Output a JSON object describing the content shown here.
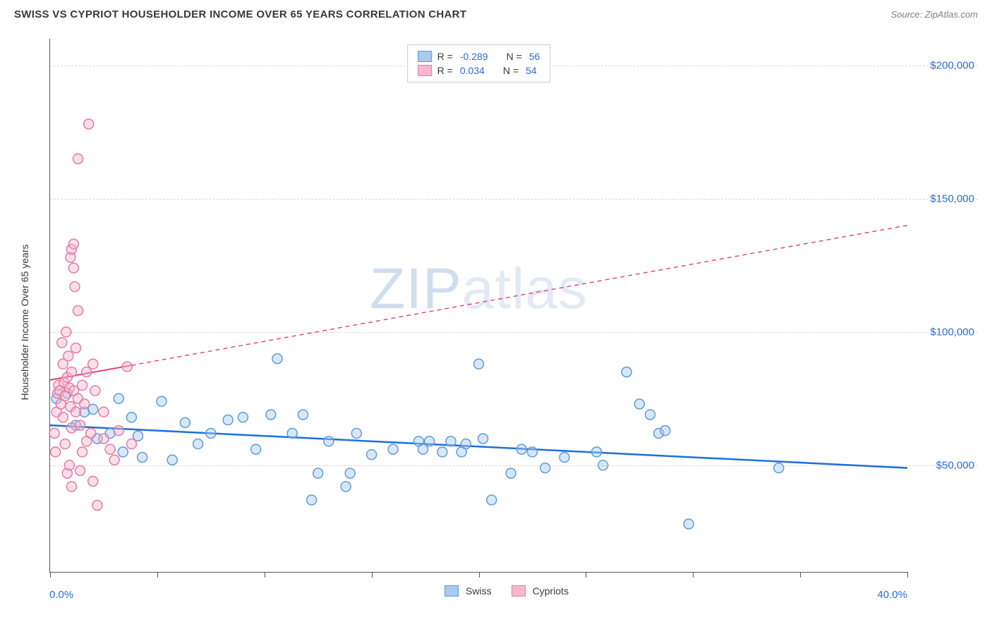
{
  "title": "SWISS VS CYPRIOT HOUSEHOLDER INCOME OVER 65 YEARS CORRELATION CHART",
  "source_prefix": "Source: ",
  "source_name": "ZipAtlas.com",
  "y_axis_label": "Householder Income Over 65 years",
  "watermark": "ZIPatlas",
  "chart": {
    "type": "scatter",
    "xlim": [
      0,
      40
    ],
    "ylim": [
      10000,
      210000
    ],
    "x_start_label": "0.0%",
    "x_end_label": "40.0%",
    "x_ticks_pct": [
      0,
      5,
      10,
      15,
      20,
      25,
      30,
      35,
      40
    ],
    "y_gridlines": [
      50000,
      100000,
      150000,
      200000
    ],
    "y_tick_labels": [
      "$50,000",
      "$100,000",
      "$150,000",
      "$200,000"
    ],
    "background_color": "#ffffff",
    "grid_color": "#d8d8d8",
    "marker_radius": 7,
    "marker_fill_opacity": 0.45,
    "series": [
      {
        "name": "Swiss",
        "color_fill": "#a9c9ef",
        "color_stroke": "#5f9bdc",
        "line_color": "#1e6fd9",
        "line_width": 2.5,
        "line_dash": "none",
        "r_value": "-0.289",
        "n_value": "56",
        "trend_start": {
          "x": 0,
          "y": 65000
        },
        "trend_end_solid": {
          "x": 40,
          "y": 49000
        },
        "trend_end": {
          "x": 40,
          "y": 49000
        },
        "points": [
          {
            "x": 0.3,
            "y": 75000
          },
          {
            "x": 0.8,
            "y": 77000
          },
          {
            "x": 1.2,
            "y": 65000
          },
          {
            "x": 1.6,
            "y": 70000
          },
          {
            "x": 2.0,
            "y": 71000
          },
          {
            "x": 2.2,
            "y": 60000
          },
          {
            "x": 2.8,
            "y": 62000
          },
          {
            "x": 3.2,
            "y": 75000
          },
          {
            "x": 3.4,
            "y": 55000
          },
          {
            "x": 3.8,
            "y": 68000
          },
          {
            "x": 4.1,
            "y": 61000
          },
          {
            "x": 4.3,
            "y": 53000
          },
          {
            "x": 5.2,
            "y": 74000
          },
          {
            "x": 5.7,
            "y": 52000
          },
          {
            "x": 6.3,
            "y": 66000
          },
          {
            "x": 6.9,
            "y": 58000
          },
          {
            "x": 7.5,
            "y": 62000
          },
          {
            "x": 8.3,
            "y": 67000
          },
          {
            "x": 9.0,
            "y": 68000
          },
          {
            "x": 9.6,
            "y": 56000
          },
          {
            "x": 10.3,
            "y": 69000
          },
          {
            "x": 10.6,
            "y": 90000
          },
          {
            "x": 11.3,
            "y": 62000
          },
          {
            "x": 11.8,
            "y": 69000
          },
          {
            "x": 12.2,
            "y": 37000
          },
          {
            "x": 12.5,
            "y": 47000
          },
          {
            "x": 13.0,
            "y": 59000
          },
          {
            "x": 13.8,
            "y": 42000
          },
          {
            "x": 14.0,
            "y": 47000
          },
          {
            "x": 14.3,
            "y": 62000
          },
          {
            "x": 15.0,
            "y": 54000
          },
          {
            "x": 16.0,
            "y": 56000
          },
          {
            "x": 17.2,
            "y": 59000
          },
          {
            "x": 17.4,
            "y": 56000
          },
          {
            "x": 17.7,
            "y": 59000
          },
          {
            "x": 18.3,
            "y": 55000
          },
          {
            "x": 18.7,
            "y": 59000
          },
          {
            "x": 19.2,
            "y": 55000
          },
          {
            "x": 19.4,
            "y": 58000
          },
          {
            "x": 20.0,
            "y": 88000
          },
          {
            "x": 20.2,
            "y": 60000
          },
          {
            "x": 20.6,
            "y": 37000
          },
          {
            "x": 21.5,
            "y": 47000
          },
          {
            "x": 22.0,
            "y": 56000
          },
          {
            "x": 22.5,
            "y": 55000
          },
          {
            "x": 23.1,
            "y": 49000
          },
          {
            "x": 24.0,
            "y": 53000
          },
          {
            "x": 25.5,
            "y": 55000
          },
          {
            "x": 25.8,
            "y": 50000
          },
          {
            "x": 26.9,
            "y": 85000
          },
          {
            "x": 27.5,
            "y": 73000
          },
          {
            "x": 28.0,
            "y": 69000
          },
          {
            "x": 28.4,
            "y": 62000
          },
          {
            "x": 28.7,
            "y": 63000
          },
          {
            "x": 29.8,
            "y": 28000
          },
          {
            "x": 34.0,
            "y": 49000
          }
        ]
      },
      {
        "name": "Cypriots",
        "color_fill": "#f5b8ce",
        "color_stroke": "#e77aa3",
        "line_color": "#e63b7a",
        "line_width": 2,
        "line_dash": "6,5",
        "r_value": "0.034",
        "n_value": "54",
        "trend_start": {
          "x": 0,
          "y": 82000
        },
        "trend_end_solid": {
          "x": 3.8,
          "y": 87500
        },
        "trend_end": {
          "x": 40,
          "y": 140000
        },
        "points": [
          {
            "x": 0.2,
            "y": 62000
          },
          {
            "x": 0.25,
            "y": 55000
          },
          {
            "x": 0.3,
            "y": 70000
          },
          {
            "x": 0.35,
            "y": 77000
          },
          {
            "x": 0.4,
            "y": 80000
          },
          {
            "x": 0.45,
            "y": 78000
          },
          {
            "x": 0.5,
            "y": 73000
          },
          {
            "x": 0.55,
            "y": 96000
          },
          {
            "x": 0.6,
            "y": 88000
          },
          {
            "x": 0.6,
            "y": 68000
          },
          {
            "x": 0.65,
            "y": 81000
          },
          {
            "x": 0.7,
            "y": 76000
          },
          {
            "x": 0.7,
            "y": 58000
          },
          {
            "x": 0.75,
            "y": 100000
          },
          {
            "x": 0.8,
            "y": 83000
          },
          {
            "x": 0.8,
            "y": 47000
          },
          {
            "x": 0.85,
            "y": 91000
          },
          {
            "x": 0.9,
            "y": 79000
          },
          {
            "x": 0.9,
            "y": 50000
          },
          {
            "x": 0.95,
            "y": 128000
          },
          {
            "x": 0.95,
            "y": 72000
          },
          {
            "x": 1.0,
            "y": 131000
          },
          {
            "x": 1.0,
            "y": 85000
          },
          {
            "x": 1.0,
            "y": 64000
          },
          {
            "x": 1.0,
            "y": 42000
          },
          {
            "x": 1.1,
            "y": 133000
          },
          {
            "x": 1.1,
            "y": 124000
          },
          {
            "x": 1.1,
            "y": 78000
          },
          {
            "x": 1.15,
            "y": 117000
          },
          {
            "x": 1.2,
            "y": 94000
          },
          {
            "x": 1.2,
            "y": 70000
          },
          {
            "x": 1.3,
            "y": 108000
          },
          {
            "x": 1.3,
            "y": 75000
          },
          {
            "x": 1.3,
            "y": 165000
          },
          {
            "x": 1.4,
            "y": 65000
          },
          {
            "x": 1.4,
            "y": 48000
          },
          {
            "x": 1.5,
            "y": 80000
          },
          {
            "x": 1.5,
            "y": 55000
          },
          {
            "x": 1.6,
            "y": 73000
          },
          {
            "x": 1.7,
            "y": 85000
          },
          {
            "x": 1.7,
            "y": 59000
          },
          {
            "x": 1.8,
            "y": 178000
          },
          {
            "x": 1.9,
            "y": 62000
          },
          {
            "x": 2.0,
            "y": 88000
          },
          {
            "x": 2.0,
            "y": 44000
          },
          {
            "x": 2.1,
            "y": 78000
          },
          {
            "x": 2.2,
            "y": 35000
          },
          {
            "x": 2.5,
            "y": 60000
          },
          {
            "x": 2.5,
            "y": 70000
          },
          {
            "x": 2.8,
            "y": 56000
          },
          {
            "x": 3.0,
            "y": 52000
          },
          {
            "x": 3.2,
            "y": 63000
          },
          {
            "x": 3.6,
            "y": 87000
          },
          {
            "x": 3.8,
            "y": 58000
          }
        ]
      }
    ]
  },
  "legend_top": {
    "r_label": "R =",
    "n_label": "N ="
  },
  "legend_bottom": {
    "items": [
      "Swiss",
      "Cypriots"
    ]
  }
}
